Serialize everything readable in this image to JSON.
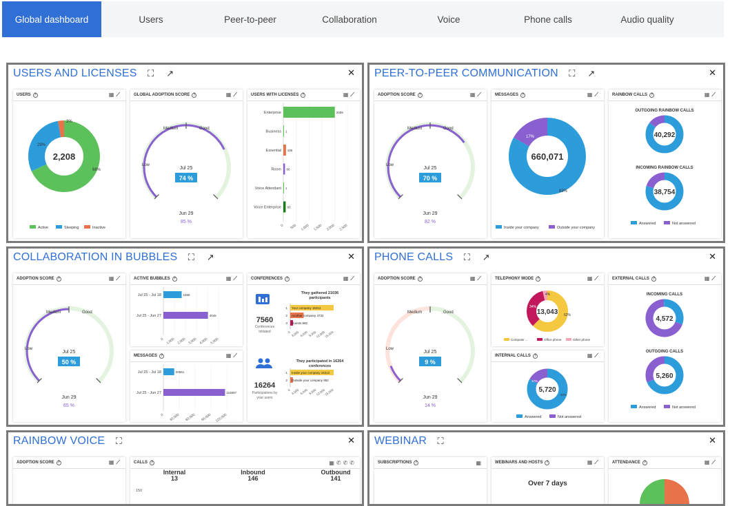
{
  "tabs": [
    "Global dashboard",
    "Users",
    "Peer-to-peer",
    "Collaboration",
    "Voice",
    "Phone calls",
    "Audio quality"
  ],
  "colors": {
    "accent": "#2f6fd6",
    "green": "#5cc15a",
    "blue": "#2d9cdb",
    "orange": "#e8734a",
    "purple": "#8a5fd0",
    "yellow": "#f5c842",
    "magenta": "#c2185b",
    "pink": "#f4a6b5"
  },
  "panels": {
    "users": {
      "title": "USERS AND LICENSES",
      "users_card": {
        "title": "USERS",
        "total": "2,208",
        "pct_active": "68%",
        "pct_sleeping": "29%",
        "pct_inactive": "3%",
        "legend": [
          "Active",
          "Sleeping",
          "Inactive"
        ],
        "values": [
          68,
          29,
          3
        ]
      },
      "adoption_card": {
        "title": "GLOBAL ADOPTION SCORE",
        "low": "Low",
        "medium": "Medium",
        "good": "Good",
        "date1": "Jul 25",
        "score1": "74 %",
        "date2": "Jun 29",
        "score2": "85 %",
        "value1": 74
      },
      "licenses_card": {
        "title": "USERS WITH LICENSES",
        "categories": [
          "Enterprise",
          "Business",
          "Essential",
          "Room",
          "Voice Attendant",
          "Voice Enterprise"
        ],
        "values": [
          2009,
          1,
          105,
          66,
          1,
          93
        ],
        "value_labels": [
          "2009",
          "1",
          "105",
          "66",
          "1",
          "93"
        ],
        "ticks": [
          "0",
          "500",
          "1,000",
          "1,500",
          "2,000",
          "2,500"
        ]
      }
    },
    "p2p": {
      "title": "PEER-TO-PEER COMMUNICATION",
      "adoption_card": {
        "title": "ADOPTION SCORE",
        "low": "Low",
        "medium": "Medium",
        "good": "Good",
        "date1": "Jul 25",
        "score1": "70 %",
        "date2": "Jun 29",
        "score2": "82 %",
        "value1": 70
      },
      "messages_card": {
        "title": "MESSAGES",
        "total": "660,071",
        "pct_inside": "83%",
        "pct_outside": "17%",
        "legend": [
          "Inside your company",
          "Outside your company"
        ],
        "values": [
          83,
          17
        ]
      },
      "calls_card": {
        "title": "RAINBOW CALLS",
        "out_title": "OUTGOING RAINBOW CALLS",
        "out_total": "40,292",
        "in_title": "INCOMING RAINBOW CALLS",
        "in_total": "38,754",
        "legend": [
          "Answered",
          "Not answered"
        ]
      }
    },
    "collab": {
      "title": "COLLABORATION IN BUBBLES",
      "adoption_card": {
        "title": "ADOPTION SCORE",
        "low": "Low",
        "medium": "Medium",
        "good": "Good",
        "date1": "Jul 25",
        "score1": "50 %",
        "date2": "Jun 29",
        "score2": "65 %",
        "value1": 50
      },
      "bubbles_card": {
        "title": "ACTIVE BUBBLES",
        "categories": [
          "Jul 25 - Jul 18",
          "Jul 25 - Jun 27"
        ],
        "values": [
          1658,
          4045
        ],
        "value_labels": [
          "1658",
          "4045"
        ],
        "ticks": [
          "0",
          "1,000",
          "2,000",
          "3,000",
          "4,000",
          "5,000"
        ]
      },
      "messages_card": {
        "title": "MESSAGES",
        "categories": [
          "Jul 25 - Jul 18",
          "Jul 25 - Jun 27"
        ],
        "values": [
          20551,
          116687
        ],
        "value_labels": [
          "20551",
          "116687"
        ],
        "ticks": [
          "0",
          "30,000",
          "60,000",
          "90,000",
          "120,000"
        ]
      },
      "conf_card": {
        "title": "CONFERENCES",
        "n1": "7560",
        "n1_label1": "Conferences",
        "n1_label2": "initiated",
        "h1a": "They gathered 21036",
        "h1b": "participants",
        "bars1": [
          "Your company 15312",
          "Another company 4732",
          "Guests 992"
        ],
        "vals1": [
          15312,
          4732,
          992
        ],
        "n2": "16264",
        "n2_label1": "Participations by",
        "n2_label2": "your users",
        "h2a": "They participated in 16264",
        "h2b": "conferences",
        "bars2": [
          "Inside your company 15312",
          "Outside your company 952"
        ],
        "vals2": [
          15312,
          952
        ],
        "ticks": [
          "0",
          "3,000",
          "6,000",
          "9,000",
          "12,000",
          "15,000"
        ]
      }
    },
    "phone": {
      "title": "PHONE CALLS",
      "adoption_card": {
        "title": "ADOPTION SCORE",
        "low": "Low",
        "medium": "Medium",
        "good": "Good",
        "date1": "Jul 25",
        "score1": "9 %",
        "date2": "Jun 29",
        "score2": "14 %",
        "value1": 9
      },
      "telephony_card": {
        "title": "TELEPHONY MODE",
        "total": "13,043",
        "pct1": "62%",
        "pct2": "34%",
        "pct3": "4%",
        "legend": [
          "Computer ...",
          "Office phone",
          "Other phone"
        ]
      },
      "internal_card": {
        "title": "INTERNAL CALLS",
        "total": "5,720",
        "pct1": "83%",
        "pct2": "17%",
        "legend": [
          "Answered",
          "Not answered"
        ]
      },
      "external_card": {
        "title": "EXTERNAL CALLS",
        "in_title": "INCOMING CALLS",
        "in_total": "4,572",
        "out_title": "OUTGOING CALLS",
        "out_total": "5,260",
        "legend": [
          "Answered",
          "Not answered"
        ]
      }
    },
    "voice": {
      "title": "RAINBOW VOICE",
      "adoption_card": {
        "title": "ADOPTION SCORE"
      },
      "calls_card": {
        "title": "CALLS",
        "cols": [
          {
            "label": "Internal",
            "value": "13"
          },
          {
            "label": "Inbound",
            "value": "146"
          },
          {
            "label": "Outbound",
            "value": "141"
          }
        ],
        "y_tick": "150"
      }
    },
    "webinar": {
      "title": "WEBINAR",
      "subs_card": {
        "title": "SUBSCRIPTIONS"
      },
      "hosts_card": {
        "title": "WEBINARS AND HOSTS",
        "headline": "Over 7 days"
      },
      "attendance_card": {
        "title": "ATTENDANCE"
      }
    }
  }
}
